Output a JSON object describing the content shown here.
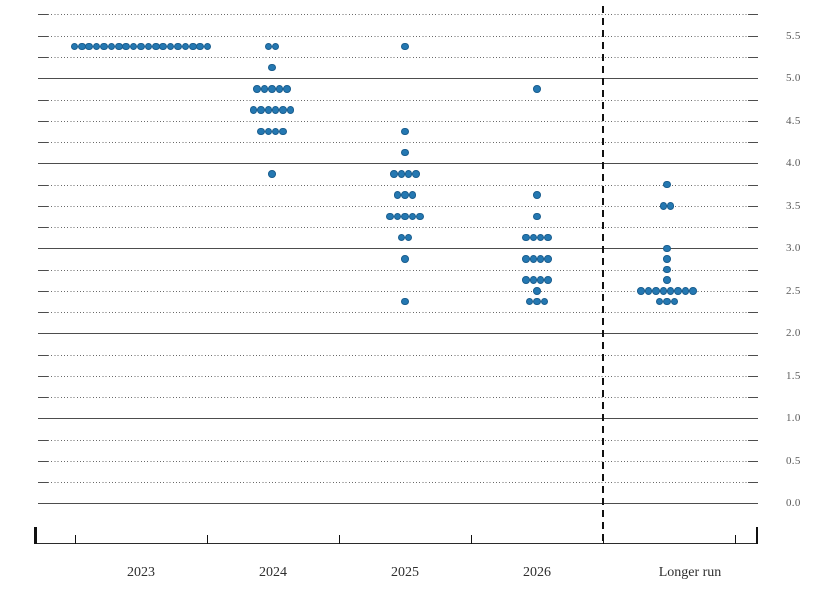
{
  "chart_data": {
    "type": "scatter",
    "title": "",
    "xlabel": "",
    "ylabel": "",
    "ylim": [
      0,
      5.75
    ],
    "grid": {
      "dotted_step": 0.25,
      "solid_step": 1.0,
      "on": true
    },
    "legend_position": "none",
    "dot_color": "#2478b2",
    "dot_edge_color": "#1a5e8f",
    "separator": {
      "style": "dashed-vertical",
      "between": [
        "2026",
        "Longer run"
      ]
    },
    "categories": [
      "2023",
      "2024",
      "2025",
      "2026",
      "Longer run"
    ],
    "yticks": [
      {
        "value": 5.5,
        "label": "5.5"
      },
      {
        "value": 5.0,
        "label": "5.0"
      },
      {
        "value": 4.5,
        "label": "4.5"
      },
      {
        "value": 4.0,
        "label": "4.0"
      },
      {
        "value": 3.5,
        "label": "3.5"
      },
      {
        "value": 3.0,
        "label": "3.0"
      },
      {
        "value": 2.5,
        "label": "2.5"
      },
      {
        "value": 2.0,
        "label": "2.0"
      },
      {
        "value": 1.5,
        "label": "1.5"
      },
      {
        "value": 1.0,
        "label": "1.0"
      },
      {
        "value": 0.5,
        "label": "0.5"
      },
      {
        "value": 0.0,
        "label": "0.0"
      }
    ],
    "series": [
      {
        "name": "2023",
        "dots": [
          {
            "value": 5.375,
            "count": 19
          }
        ]
      },
      {
        "name": "2024",
        "dots": [
          {
            "value": 5.375,
            "count": 2
          },
          {
            "value": 5.125,
            "count": 1
          },
          {
            "value": 4.875,
            "count": 5
          },
          {
            "value": 4.625,
            "count": 6
          },
          {
            "value": 4.375,
            "count": 4
          },
          {
            "value": 3.875,
            "count": 1
          }
        ]
      },
      {
        "name": "2025",
        "dots": [
          {
            "value": 5.375,
            "count": 1
          },
          {
            "value": 4.375,
            "count": 1
          },
          {
            "value": 4.125,
            "count": 1
          },
          {
            "value": 3.875,
            "count": 4
          },
          {
            "value": 3.625,
            "count": 3
          },
          {
            "value": 3.375,
            "count": 5
          },
          {
            "value": 3.125,
            "count": 2
          },
          {
            "value": 2.875,
            "count": 1
          },
          {
            "value": 2.375,
            "count": 1
          }
        ]
      },
      {
        "name": "2026",
        "dots": [
          {
            "value": 4.875,
            "count": 1
          },
          {
            "value": 3.625,
            "count": 1
          },
          {
            "value": 3.375,
            "count": 1
          },
          {
            "value": 3.125,
            "count": 4
          },
          {
            "value": 2.875,
            "count": 4
          },
          {
            "value": 2.625,
            "count": 4
          },
          {
            "value": 2.5,
            "count": 1
          },
          {
            "value": 2.375,
            "count": 3
          }
        ]
      },
      {
        "name": "Longer run",
        "dots": [
          {
            "value": 3.75,
            "count": 1
          },
          {
            "value": 3.5,
            "count": 2
          },
          {
            "value": 3.0,
            "count": 1
          },
          {
            "value": 2.875,
            "count": 1
          },
          {
            "value": 2.75,
            "count": 1
          },
          {
            "value": 2.625,
            "count": 1
          },
          {
            "value": 2.5,
            "count": 8
          },
          {
            "value": 2.375,
            "count": 3
          }
        ]
      }
    ]
  }
}
